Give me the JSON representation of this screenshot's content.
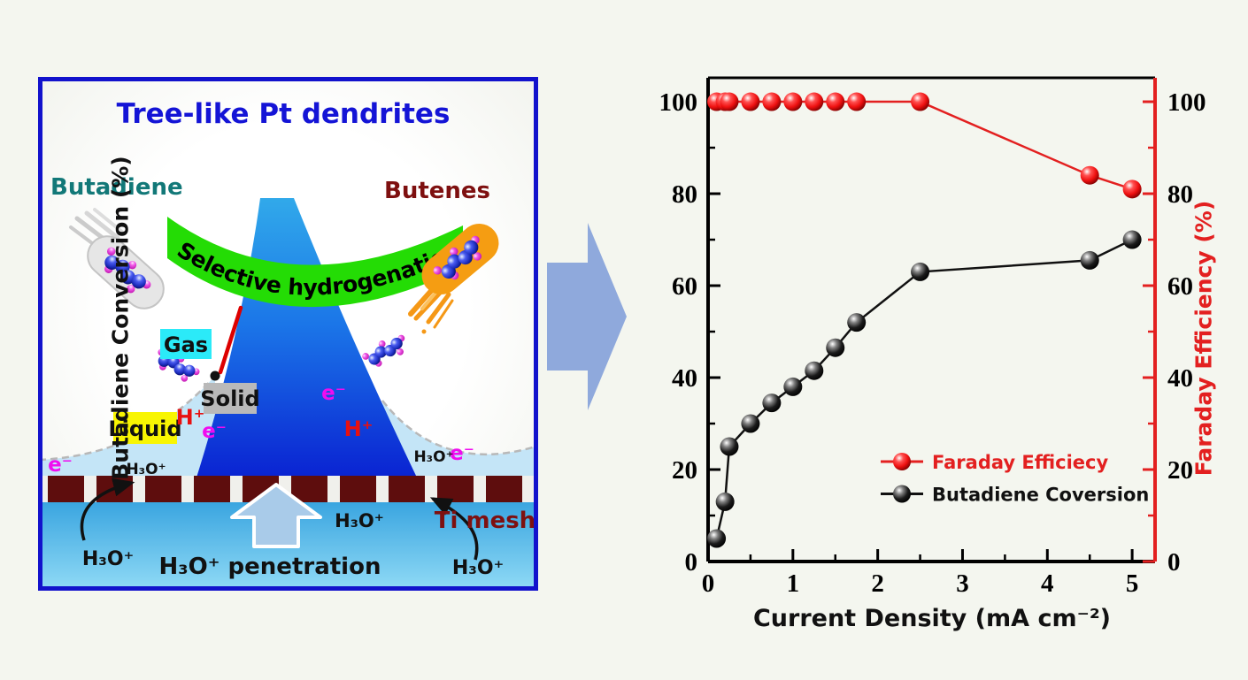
{
  "figure": {
    "background": "#F4F6EF"
  },
  "left_panel": {
    "title": "Tree-like Pt dendrites",
    "reactant": "Butadiene",
    "product": "Butenes",
    "banner": "Selective hydrogenation",
    "gas": "Gas",
    "solid": "Solid",
    "liquid": "Liquid",
    "hydronium": "H₃O⁺",
    "proton": "H⁺",
    "electron": "e⁻",
    "ti_mesh": "Ti mesh",
    "penetration": "H₃O⁺ penetration",
    "colors": {
      "title": "#1414D6",
      "reactant": "#127878",
      "product": "#7E1010",
      "banner": "#24DC05",
      "cone_top": "#31A9EA",
      "cone_bottom": "#0A23D2",
      "mesh": "#5E0D0D",
      "gas_box": "#2BEAF8",
      "solid_box": "#B9B9B9",
      "liquid_box": "#F8F502",
      "proton_color": "#E81010",
      "electron_color": "#F00CF0",
      "border": "#1212CC"
    }
  },
  "between_arrow": {
    "color": "#8FA9DC"
  },
  "chart_data": {
    "type": "line",
    "title": "",
    "xlabel": "Current Density (mA cm⁻²)",
    "ylabel_left": "Butadiene Conversion (%)",
    "ylabel_right": "Faraday Efficiency (%)",
    "x": [
      0.1,
      0.2,
      0.25,
      0.5,
      0.75,
      1.0,
      1.25,
      1.5,
      1.75,
      2.5,
      4.5,
      5.0
    ],
    "series": [
      {
        "name": "Faraday Efficiecy",
        "axis": "right",
        "color": "#E32020",
        "values": [
          100,
          100,
          100,
          100,
          100,
          100,
          100,
          100,
          100,
          100,
          84,
          81
        ]
      },
      {
        "name": "Butadiene Coversion",
        "axis": "left",
        "color": "#111111",
        "values": [
          5,
          13,
          25,
          30,
          34.5,
          38,
          41.5,
          46.5,
          52,
          63,
          65.5,
          70
        ]
      }
    ],
    "xlim": [
      0,
      5.27
    ],
    "ylim": [
      0,
      105.2
    ],
    "xticks": [
      0,
      1,
      2,
      3,
      4,
      5
    ],
    "yticks": [
      0,
      20,
      40,
      60,
      80,
      100
    ],
    "x_minor_step": 0.5,
    "y_minor_step": 10,
    "grid": false,
    "legend_position": "center-right",
    "left_axis_color": "#000000",
    "right_axis_color": "#E32020"
  }
}
